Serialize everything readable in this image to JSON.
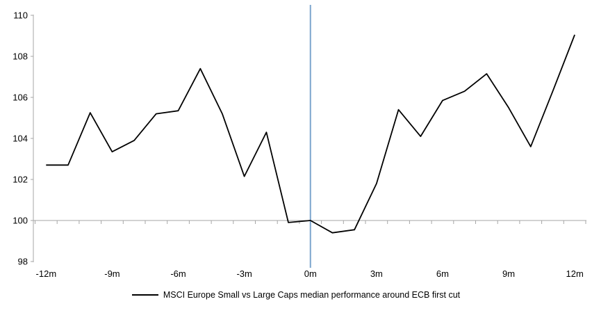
{
  "chart_data": {
    "type": "line",
    "title": "",
    "xlabel": "",
    "ylabel": "",
    "x": [
      -12,
      -11,
      -10,
      -9,
      -8,
      -7,
      -6,
      -5,
      -4,
      -3,
      -2,
      -1,
      0,
      1,
      2,
      3,
      4,
      5,
      6,
      7,
      8,
      9,
      10,
      11,
      12
    ],
    "series": [
      {
        "name": "MSCI Europe Small vs Large Caps median performance around ECB first cut",
        "values": [
          102.7,
          102.7,
          105.25,
          103.35,
          103.9,
          105.2,
          105.35,
          107.4,
          105.2,
          102.15,
          104.3,
          99.9,
          100.0,
          99.4,
          99.55,
          101.8,
          105.4,
          104.1,
          105.85,
          106.3,
          107.15,
          105.5,
          103.6,
          106.3,
          109.05
        ]
      }
    ],
    "xtick_labels": [
      "-12m",
      "-9m",
      "-6m",
      "-3m",
      "0m",
      "3m",
      "6m",
      "9m",
      "12m"
    ],
    "xtick_months": [
      -12,
      -9,
      -6,
      -3,
      0,
      3,
      6,
      9,
      12
    ],
    "yticks": [
      98,
      100,
      102,
      104,
      106,
      108,
      110
    ],
    "ylim": [
      98,
      110
    ],
    "xlim_months": [
      -12,
      12
    ],
    "baseline_value": 100,
    "event_line_at_month": 0,
    "grid": "off",
    "legend_position": "bottom-center",
    "colors": {
      "series_line": "#000000",
      "event_line": "#7CA5CD",
      "axis": "#A6A6A6",
      "tick_text": "#000000",
      "background": "#FFFFFF"
    }
  },
  "legend": {
    "label": "MSCI Europe Small vs Large Caps median performance around ECB first cut"
  }
}
